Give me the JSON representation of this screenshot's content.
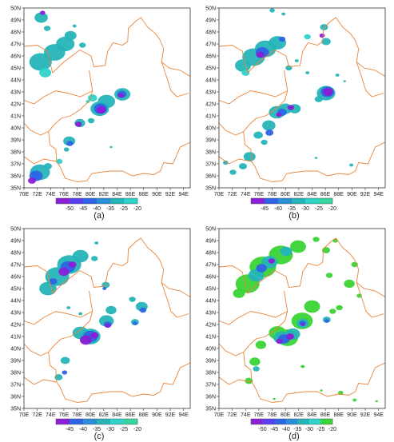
{
  "lon_ticks": [
    "70E",
    "72E",
    "74E",
    "76E",
    "78E",
    "80E",
    "82E",
    "84E",
    "86E",
    "88E",
    "90E",
    "92E",
    "94E"
  ],
  "lat_ticks": [
    "35N",
    "36N",
    "37N",
    "38N",
    "39N",
    "40N",
    "41N",
    "42N",
    "43N",
    "44N",
    "45N",
    "46N",
    "47N",
    "48N",
    "49N",
    "50N"
  ],
  "colors": {
    "border": "#e8853a",
    "purple": "#8a1fd6",
    "blue": "#2f63e6",
    "teal": "#25b4b8",
    "aqua": "#2fd3c9",
    "green": "#39d435"
  },
  "panels": [
    {
      "label": "(a)",
      "colorbar": {
        "labels": [
          "-50",
          "-45",
          "-40",
          "-35",
          "-25",
          "-20"
        ],
        "colors": [
          "#8a1fd6",
          "#5a3ff0",
          "#2f63e6",
          "#2a8fd6",
          "#25b4b8",
          "#2fd3c9"
        ]
      }
    },
    {
      "label": "(b)",
      "colorbar": {
        "labels": [
          "-45",
          "-40",
          "-35",
          "-30",
          "-25",
          "-20"
        ],
        "colors": [
          "#8a1fd6",
          "#2f63e6",
          "#2a8fd6",
          "#25b4b8",
          "#2fd3c9",
          "#39d4a0"
        ]
      }
    },
    {
      "label": "(c)",
      "colorbar": {
        "labels": [
          "-45",
          "-40",
          "-35",
          "-30",
          "-25",
          "-20"
        ],
        "colors": [
          "#8a1fd6",
          "#2f63e6",
          "#2a8fd6",
          "#25b4b8",
          "#2fd3c9",
          "#39d4a0"
        ]
      }
    },
    {
      "label": "(d)",
      "colorbar": {
        "labels": [
          "-50",
          "-45",
          "-40",
          "-35",
          "-30",
          "-25",
          "-20"
        ],
        "colors": [
          "#8a1fd6",
          "#5a3ff0",
          "#2f63e6",
          "#2a8fd6",
          "#25b4b8",
          "#2fd3c9",
          "#39d435"
        ]
      }
    }
  ]
}
